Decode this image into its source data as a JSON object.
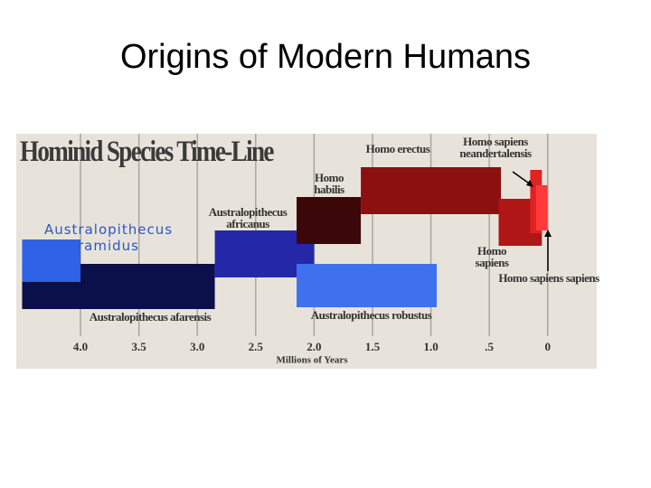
{
  "heading": "Origins of Modern Humans",
  "chart_data": {
    "type": "range",
    "title": "Hominid Species Time-Line",
    "x_label": "Millions of Years",
    "xlim": [
      4.55,
      -0.42
    ],
    "xticks": [
      {
        "value": 4,
        "label": "4.0"
      },
      3.5,
      {
        "value": 3,
        "label": "3.0"
      },
      2.5,
      {
        "value": 2,
        "label": "2.0"
      },
      1.5,
      {
        "value": 1,
        "label": "1.0"
      },
      {
        "value": 0.5,
        "label": ".5"
      },
      0
    ],
    "grid": true,
    "series": [
      {
        "name": "Australopithecus afarensis",
        "color": "#0b0f4a",
        "start": 4.5,
        "end": 2.85
      },
      {
        "name": "Australopithecus ramidus",
        "color": "#2f62e6",
        "start": 4.5,
        "end": 4.0
      },
      {
        "name": "Australopithecus africanus",
        "color": "#2428a8",
        "start": 2.85,
        "end": 2.0
      },
      {
        "name": "Homo habilis",
        "color": "#3a0808",
        "start": 2.15,
        "end": 1.6
      },
      {
        "name": "Australopithecus robustus",
        "color": "#3f70ee",
        "start": 2.15,
        "end": 0.95
      },
      {
        "name": "Homo erectus",
        "color": "#8c1010",
        "start": 1.6,
        "end": 0.4
      },
      {
        "name": "Homo sapiens",
        "color": "#b01616",
        "start": 0.42,
        "end": 0.05
      },
      {
        "name": "Homo sapiens neandertalensis",
        "color": "#e02222",
        "start": 0.15,
        "end": 0.05
      },
      {
        "name": "Homo sapiens sapiens",
        "color": "#ff3a3a",
        "start": 0.1,
        "end": 0.0
      }
    ]
  }
}
